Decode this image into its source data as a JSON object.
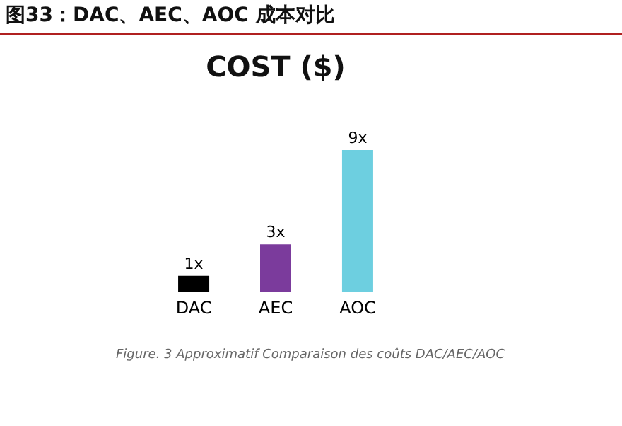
{
  "chart_data": {
    "type": "bar",
    "title": "COST ($)",
    "categories": [
      "DAC",
      "AEC",
      "AOC"
    ],
    "values": [
      1,
      3,
      9
    ],
    "colors": [
      "#000000",
      "#7b3b9c",
      "#6dcfe0"
    ],
    "value_labels": [
      "1x",
      "3x",
      "9x"
    ],
    "annotations": [
      "图33：DAC、AEC、AOC 成本对比",
      "Figure. 3  Approximatif Comparaison des coûts DAC/AEC/AOC"
    ]
  }
}
